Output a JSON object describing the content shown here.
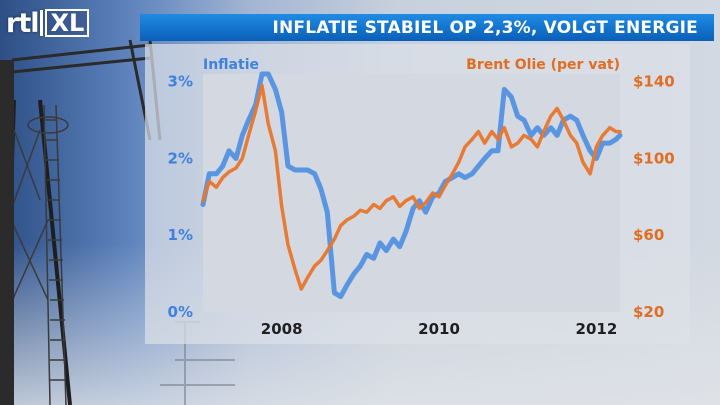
{
  "header": {
    "logo_text": "rtl",
    "logo_suffix": "XL",
    "title": "INFLATIE STABIEL OP 2,3%, VOLGT ENERGIE"
  },
  "colors": {
    "inflation": "#4f8fe2",
    "oil": "#e8762c",
    "title_bar": "#1577d2"
  },
  "chart_data": {
    "type": "line",
    "left_axis": {
      "label": "Inflatie",
      "ticks": [
        {
          "value": 0,
          "label": "0%"
        },
        {
          "value": 1,
          "label": "1%"
        },
        {
          "value": 2,
          "label": "2%"
        },
        {
          "value": 3,
          "label": "3%"
        }
      ],
      "range": [
        0,
        3.1
      ]
    },
    "right_axis": {
      "label": "Brent Olie (per vat)",
      "ticks": [
        {
          "value": 20,
          "label": "$20"
        },
        {
          "value": 60,
          "label": "$60"
        },
        {
          "value": 100,
          "label": "$100"
        },
        {
          "value": 140,
          "label": "$140"
        }
      ],
      "range": [
        20,
        144
      ]
    },
    "x_axis": {
      "range": [
        2007.0,
        2012.3
      ],
      "ticks": [
        {
          "value": 2008,
          "label": "2008"
        },
        {
          "value": 2010,
          "label": "2010"
        },
        {
          "value": 2012,
          "label": "2012"
        }
      ]
    },
    "grid": false,
    "series": [
      {
        "name": "Inflatie",
        "axis": "left",
        "x": [
          2007.0,
          2007.08,
          2007.17,
          2007.25,
          2007.33,
          2007.42,
          2007.5,
          2007.58,
          2007.67,
          2007.75,
          2007.83,
          2007.92,
          2008.0,
          2008.08,
          2008.17,
          2008.25,
          2008.33,
          2008.42,
          2008.5,
          2008.58,
          2008.67,
          2008.75,
          2008.83,
          2008.92,
          2009.0,
          2009.08,
          2009.17,
          2009.25,
          2009.33,
          2009.42,
          2009.5,
          2009.58,
          2009.67,
          2009.75,
          2009.83,
          2009.92,
          2010.0,
          2010.08,
          2010.17,
          2010.25,
          2010.33,
          2010.42,
          2010.5,
          2010.58,
          2010.67,
          2010.75,
          2010.83,
          2010.92,
          2011.0,
          2011.08,
          2011.17,
          2011.25,
          2011.33,
          2011.42,
          2011.5,
          2011.58,
          2011.67,
          2011.75,
          2011.83,
          2011.92,
          2012.0,
          2012.08,
          2012.17,
          2012.25,
          2012.3
        ],
        "values": [
          1.4,
          1.8,
          1.8,
          1.9,
          2.1,
          2.0,
          2.3,
          2.5,
          2.7,
          3.1,
          3.1,
          2.9,
          2.6,
          1.9,
          1.85,
          1.85,
          1.85,
          1.8,
          1.6,
          1.3,
          0.25,
          0.2,
          0.35,
          0.5,
          0.6,
          0.75,
          0.7,
          0.9,
          0.8,
          0.95,
          0.85,
          1.05,
          1.35,
          1.45,
          1.3,
          1.5,
          1.55,
          1.7,
          1.75,
          1.8,
          1.75,
          1.8,
          1.9,
          2.0,
          2.1,
          2.1,
          2.9,
          2.8,
          2.55,
          2.5,
          2.3,
          2.4,
          2.3,
          2.4,
          2.3,
          2.5,
          2.55,
          2.5,
          2.3,
          2.1,
          2.0,
          2.2,
          2.2,
          2.25,
          2.3
        ]
      },
      {
        "name": "Brent Olie (per vat)",
        "axis": "right",
        "x": [
          2007.0,
          2007.08,
          2007.17,
          2007.25,
          2007.33,
          2007.42,
          2007.5,
          2007.58,
          2007.67,
          2007.75,
          2007.83,
          2007.92,
          2008.0,
          2008.08,
          2008.17,
          2008.25,
          2008.33,
          2008.42,
          2008.5,
          2008.58,
          2008.67,
          2008.75,
          2008.83,
          2008.92,
          2009.0,
          2009.08,
          2009.17,
          2009.25,
          2009.33,
          2009.42,
          2009.5,
          2009.58,
          2009.67,
          2009.75,
          2009.83,
          2009.92,
          2010.0,
          2010.08,
          2010.17,
          2010.25,
          2010.33,
          2010.42,
          2010.5,
          2010.58,
          2010.67,
          2010.75,
          2010.83,
          2010.92,
          2011.0,
          2011.08,
          2011.17,
          2011.25,
          2011.33,
          2011.42,
          2011.5,
          2011.58,
          2011.67,
          2011.75,
          2011.83,
          2011.92,
          2012.0,
          2012.08,
          2012.17,
          2012.25,
          2012.3
        ],
        "values": [
          78,
          88,
          85,
          90,
          93,
          95,
          100,
          112,
          125,
          138,
          118,
          104,
          75,
          55,
          42,
          32,
          38,
          44,
          47,
          52,
          58,
          65,
          68,
          70,
          73,
          72,
          76,
          74,
          78,
          80,
          75,
          78,
          80,
          74,
          77,
          82,
          80,
          86,
          92,
          98,
          106,
          110,
          114,
          108,
          114,
          110,
          116,
          106,
          108,
          112,
          110,
          106,
          114,
          122,
          126,
          120,
          112,
          108,
          98,
          92,
          106,
          112,
          116,
          114,
          114
        ]
      }
    ]
  }
}
